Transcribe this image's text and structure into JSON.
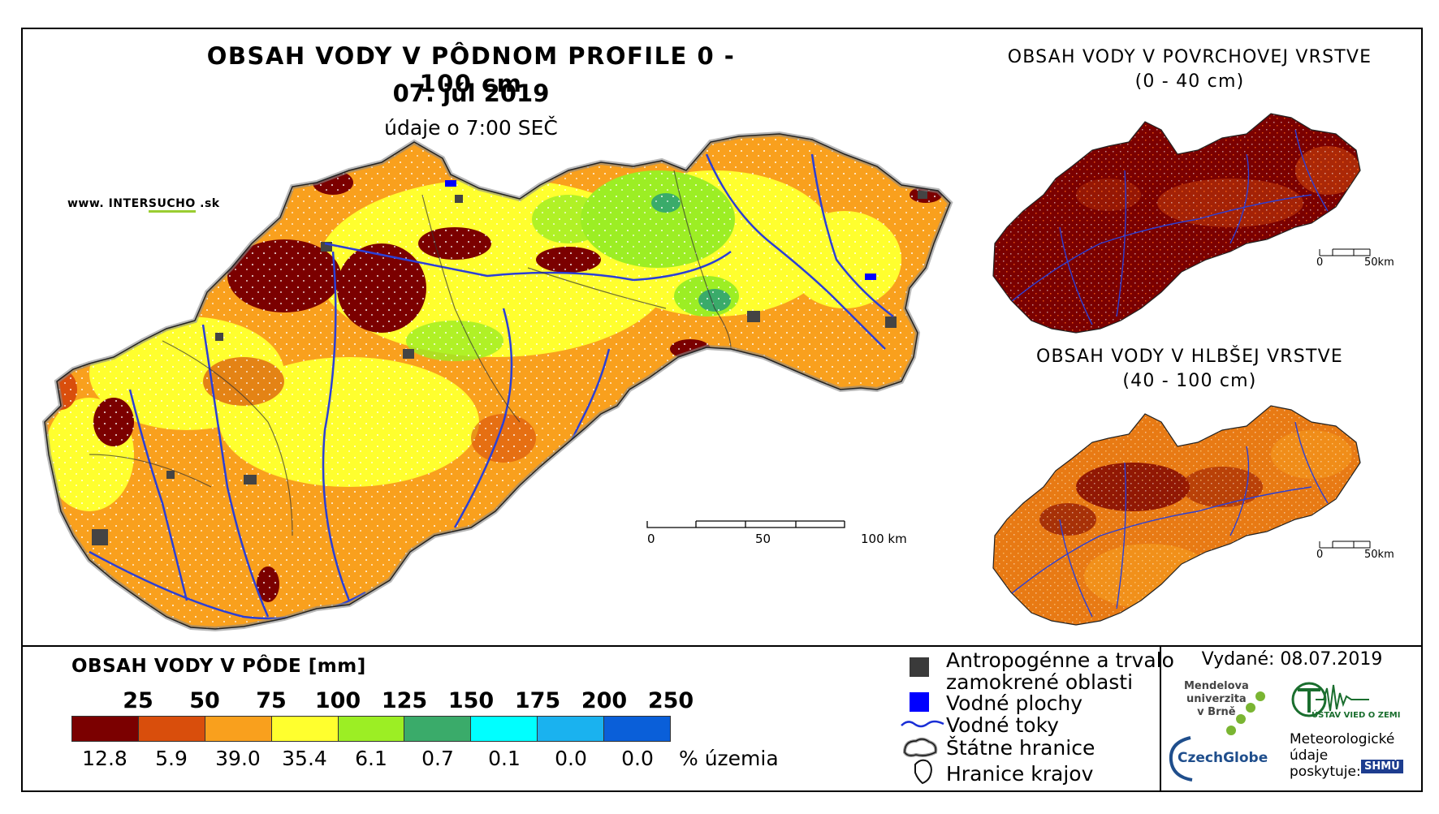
{
  "title": {
    "main": "OBSAH VODY V PÔDNOM PROFILE 0 - 100 cm",
    "date": "07. júl 2019",
    "subtitle": "údaje o 7:00 SEČ"
  },
  "website": {
    "prefix": "www. INTER",
    "highlight": "SUCHO",
    "suffix": " .sk"
  },
  "inset_surface": {
    "title_line1": "OBSAH VODY V POVRCHOVEJ VRSTVE",
    "title_line2": "(0 - 40 cm)",
    "scale_start": "0",
    "scale_end": "50km"
  },
  "inset_deep": {
    "title_line1": "OBSAH VODY V HLBŠEJ VRSTVE",
    "title_line2": "(40 - 100 cm)",
    "scale_start": "0",
    "scale_end": "50km"
  },
  "main_scale": {
    "start": "0",
    "mid": "50",
    "end": "100 km"
  },
  "legend": {
    "title": "OBSAH VODY V PÔDE [mm]",
    "ticks": [
      "25",
      "50",
      "75",
      "100",
      "125",
      "150",
      "175",
      "200",
      "250"
    ],
    "colors": [
      "#7b0000",
      "#d94e0c",
      "#f9a01d",
      "#ffff2e",
      "#9cee24",
      "#3aab6a",
      "#00ffff",
      "#1ab2ef",
      "#0a5fd9"
    ],
    "percentages": [
      "12.8",
      "5.9",
      "39.0",
      "35.4",
      "6.1",
      "0.7",
      "0.1",
      "0.0",
      "0.0"
    ],
    "percent_unit": "% územia"
  },
  "symbols": {
    "anthropogenic_line1": "Antropogénne a trvalo",
    "anthropogenic_line2": "zamokrené oblasti",
    "water_bodies": "Vodné plochy",
    "water_streams": "Vodné toky",
    "state_border": "Štátne hranice",
    "region_border": "Hranice krajov"
  },
  "issued": "Vydané: 08.07.2019",
  "logos": {
    "mendel": [
      "Mendelova",
      "univerzita",
      "v Brně"
    ],
    "czechglobe": "CzechGlobe",
    "uvz": "ÚSTAV VIED O ZEMI",
    "meteo": [
      "Meteorologické",
      "údaje",
      "poskytuje:"
    ],
    "shmu": "SHMÚ"
  }
}
